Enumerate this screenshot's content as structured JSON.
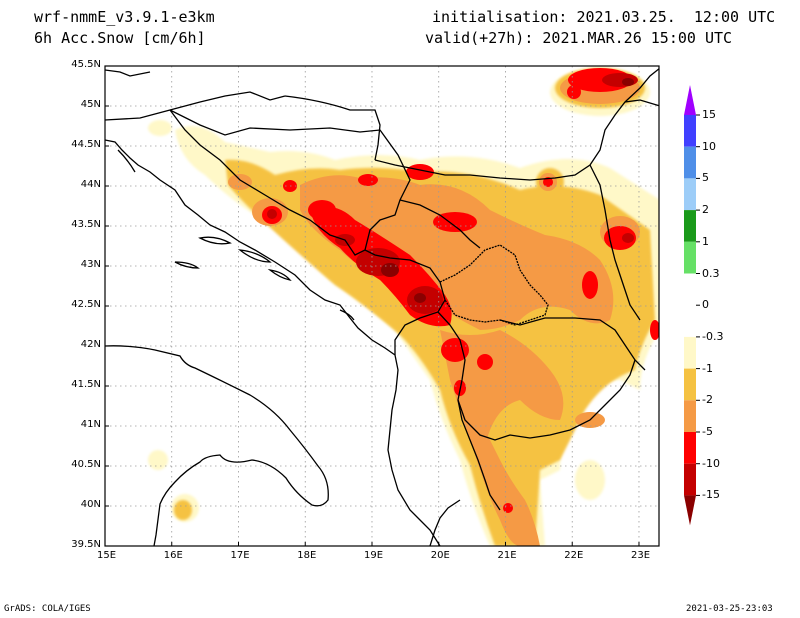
{
  "header": {
    "model": "wrf-nmmE_v3.9.1-e3km",
    "field": "6h Acc.Snow [cm/6h]",
    "init": "initialisation: 2021.03.25.  12:00 UTC",
    "valid": "valid(+27h): 2021.MAR.26 15:00 UTC"
  },
  "axes": {
    "lon_labels": [
      "15E",
      "16E",
      "17E",
      "18E",
      "19E",
      "20E",
      "21E",
      "22E",
      "23E"
    ],
    "lat_labels": [
      "45.5N",
      "45N",
      "44.5N",
      "44N",
      "43.5N",
      "43N",
      "42.5N",
      "42N",
      "41.5N",
      "41N",
      "40.5N",
      "40N",
      "39.5N"
    ],
    "lon_range": [
      15,
      23.3
    ],
    "lat_range": [
      39.5,
      45.5
    ]
  },
  "colorbar": {
    "labels": [
      "15",
      "10",
      "5",
      "2",
      "1",
      "0.3",
      "0",
      "-0.3",
      "-1",
      "-2",
      "-5",
      "-10",
      "-15"
    ],
    "colors": [
      "#a000ff",
      "#4040ff",
      "#4f8fe8",
      "#9dcdf8",
      "#1a9a1a",
      "#66e066",
      "#ffffff",
      "#ffffff",
      "#fff8c8",
      "#f5c242",
      "#f59a45",
      "#ff0000",
      "#c40000",
      "#8a0000"
    ]
  },
  "footer": {
    "left": "GrADS: COLA/IGES",
    "right": "2021-03-25-23:03"
  }
}
